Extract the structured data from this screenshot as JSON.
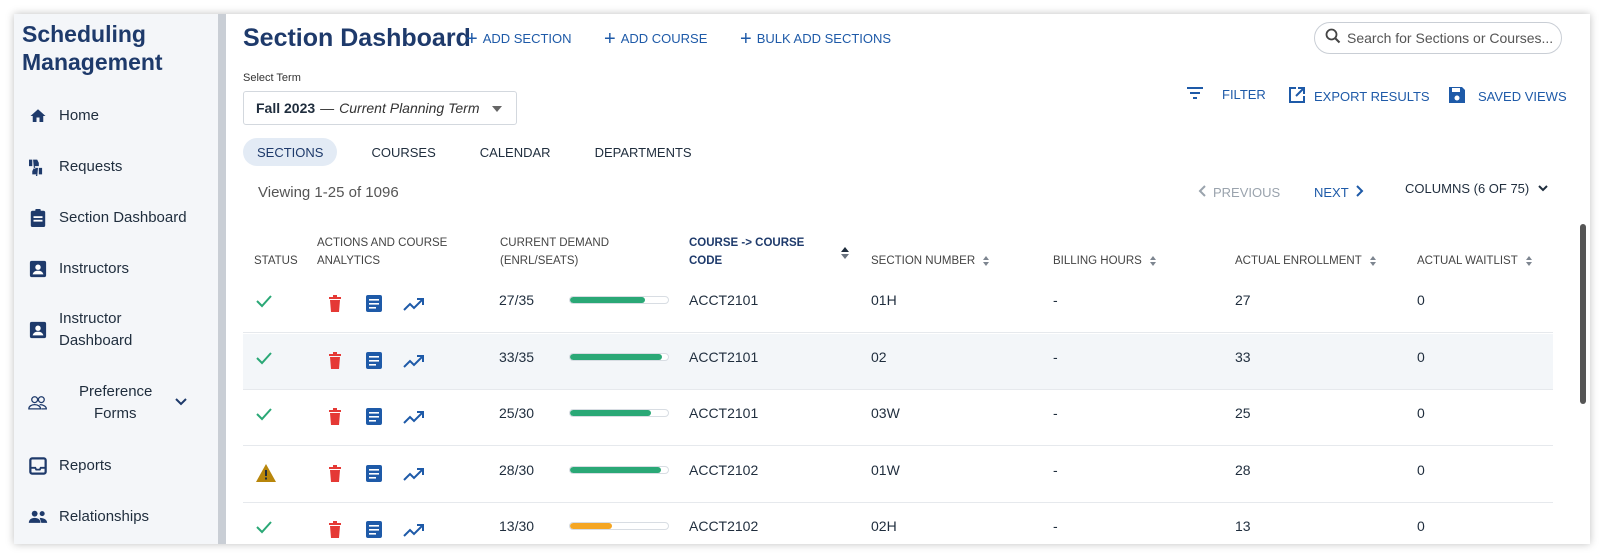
{
  "app": {
    "title_line1": "Scheduling",
    "title_line2": "Management"
  },
  "sidebar": {
    "items": [
      {
        "label": "Home",
        "icon": "home-icon"
      },
      {
        "label": "Requests",
        "icon": "thumbs-icon"
      },
      {
        "label": "Section Dashboard",
        "icon": "clipboard-icon"
      },
      {
        "label": "Instructors",
        "icon": "id-badge-icon"
      },
      {
        "label": "Instructor",
        "label2": "Dashboard",
        "icon": "id-badge-icon"
      },
      {
        "label": "Preference",
        "label2": "Forms",
        "icon": "people-icon"
      },
      {
        "label": "Reports",
        "icon": "inbox-icon"
      },
      {
        "label": "Relationships",
        "icon": "group-icon"
      }
    ]
  },
  "header": {
    "title": "Section Dashboard",
    "add_section": "ADD SECTION",
    "add_course": "ADD COURSE",
    "bulk_add": "BULK ADD SECTIONS",
    "search_placeholder": "Search for Sections or Courses..."
  },
  "term": {
    "label": "Select Term",
    "name": "Fall 2023",
    "separator": "—",
    "subtitle": "Current Planning Term"
  },
  "actions": {
    "filter": "FILTER",
    "export": "EXPORT RESULTS",
    "saved_views": "SAVED VIEWS"
  },
  "tabs": [
    "SECTIONS",
    "COURSES",
    "CALENDAR",
    "DEPARTMENTS"
  ],
  "active_tab": "SECTIONS",
  "pagination": {
    "viewing": "Viewing 1-25 of 1096",
    "previous": "PREVIOUS",
    "next": "NEXT",
    "columns": "COLUMNS (6 OF 75)"
  },
  "table": {
    "headers": {
      "status": "STATUS",
      "actions_line1": "ACTIONS AND COURSE",
      "actions_line2": "ANALYTICS",
      "demand_line1": "CURRENT DEMAND",
      "demand_line2": "(ENRL/SEATS)",
      "course_line1": "COURSE -> COURSE",
      "course_line2": "CODE",
      "section": "SECTION NUMBER",
      "billing": "BILLING HOURS",
      "enrollment": "ACTUAL ENROLLMENT",
      "waitlist": "ACTUAL WAITLIST"
    },
    "rows": [
      {
        "status": "ok",
        "demand": "27/35",
        "fill": 0.77,
        "fill_color": "#2aa876",
        "course": "ACCT2101",
        "section": "01H",
        "billing": "-",
        "enrollment": "27",
        "waitlist": "0"
      },
      {
        "status": "ok",
        "demand": "33/35",
        "fill": 0.94,
        "fill_color": "#2aa876",
        "course": "ACCT2101",
        "section": "02",
        "billing": "-",
        "enrollment": "33",
        "waitlist": "0"
      },
      {
        "status": "ok",
        "demand": "25/30",
        "fill": 0.83,
        "fill_color": "#2aa876",
        "course": "ACCT2101",
        "section": "03W",
        "billing": "-",
        "enrollment": "25",
        "waitlist": "0"
      },
      {
        "status": "warning",
        "demand": "28/30",
        "fill": 0.93,
        "fill_color": "#2aa876",
        "course": "ACCT2102",
        "section": "01W",
        "billing": "-",
        "enrollment": "28",
        "waitlist": "0"
      },
      {
        "status": "ok",
        "demand": "13/30",
        "fill": 0.43,
        "fill_color": "#f5a623",
        "course": "ACCT2102",
        "section": "02H",
        "billing": "-",
        "enrollment": "13",
        "waitlist": "0"
      }
    ]
  },
  "colors": {
    "brand": "#1e3a6b",
    "link": "#1e5aa8",
    "success": "#2aa876",
    "delete": "#e53935",
    "warning": "#b8860b"
  }
}
